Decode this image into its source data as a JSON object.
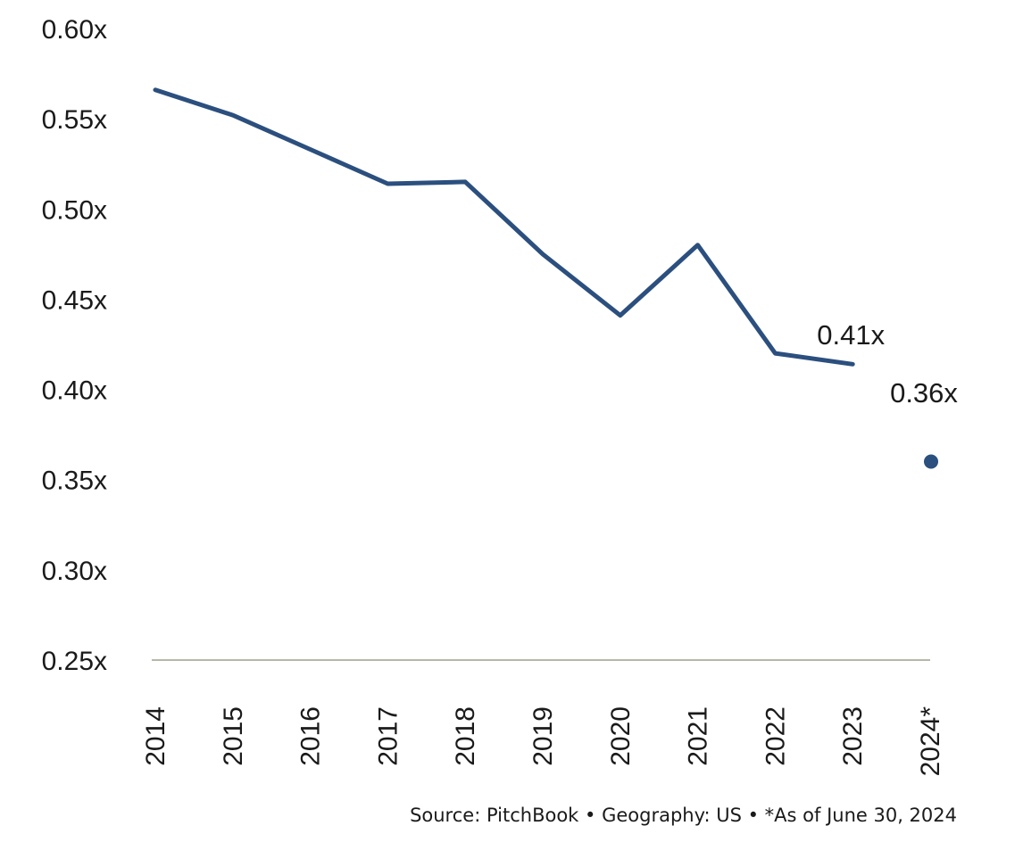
{
  "chart_data": {
    "type": "line",
    "x": [
      "2014",
      "2015",
      "2016",
      "2017",
      "2018",
      "2019",
      "2020",
      "2021",
      "2022",
      "2023",
      "2024*"
    ],
    "series": [
      {
        "values": [
          0.566,
          0.552,
          0.533,
          0.514,
          0.515,
          0.475,
          0.441,
          0.48,
          0.42,
          0.414,
          null
        ]
      },
      {
        "values": [
          null,
          null,
          null,
          null,
          null,
          null,
          null,
          null,
          null,
          null,
          0.36
        ]
      }
    ],
    "data_labels": [
      {
        "category": "2023",
        "text": "0.41x"
      },
      {
        "category": "2024*",
        "text": "0.36x"
      }
    ],
    "ylim": [
      0.25,
      0.6
    ],
    "yticks": [
      "0.60x",
      "0.55x",
      "0.50x",
      "0.45x",
      "0.40x",
      "0.35x",
      "0.30x",
      "0.25x"
    ],
    "ytick_values": [
      0.6,
      0.55,
      0.5,
      0.45,
      0.4,
      0.35,
      0.3,
      0.25
    ],
    "grid": false,
    "line_color": "#2b4f7e",
    "axis_color": "#b5b8a8",
    "source_note": "Source: PitchBook • Geography: US • *As of June 30, 2024"
  }
}
